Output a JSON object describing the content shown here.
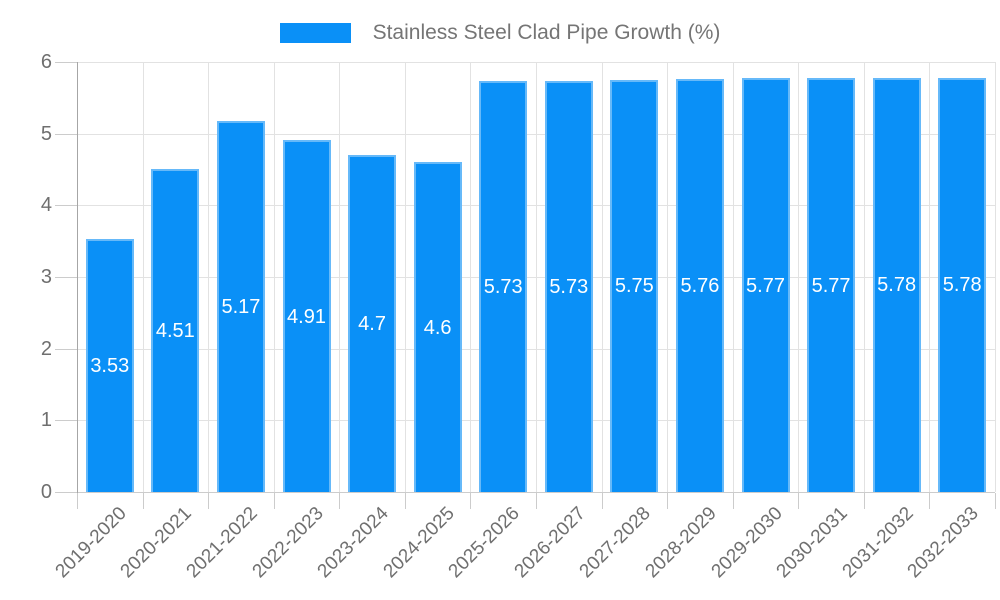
{
  "chart_data": {
    "type": "bar",
    "title": "Stainless Steel Clad Pipe Growth (%)",
    "legend": {
      "label": "Stainless Steel Clad Pipe Growth (%)",
      "position": "top-center"
    },
    "categories": [
      "2019-2020",
      "2020-2021",
      "2021-2022",
      "2022-2023",
      "2023-2024",
      "2024-2025",
      "2025-2026",
      "2026-2027",
      "2027-2028",
      "2028-2029",
      "2029-2030",
      "2030-2031",
      "2031-2032",
      "2032-2033"
    ],
    "series": [
      {
        "name": "Stainless Steel Clad Pipe Growth (%)",
        "values": [
          3.53,
          4.51,
          5.17,
          4.91,
          4.7,
          4.6,
          5.73,
          5.73,
          5.75,
          5.76,
          5.77,
          5.77,
          5.78,
          5.78
        ]
      }
    ],
    "bar_labels": [
      "3.53",
      "4.51",
      "5.17",
      "4.91",
      "4.7",
      "4.6",
      "5.73",
      "5.73",
      "5.75",
      "5.76",
      "5.77",
      "5.77",
      "5.78",
      "5.78"
    ],
    "xlabel": "",
    "ylabel": "",
    "ylim": [
      0,
      6
    ],
    "yticks": [
      "0",
      "1",
      "2",
      "3",
      "4",
      "5",
      "6"
    ],
    "grid": "both",
    "colors": {
      "bar_fill": "#0a90f7",
      "bar_border": "#66b9f9",
      "gridline": "#e2e2e2",
      "y_axis_line": "#a6a6a6",
      "tick": "#cccccc",
      "axis_text": "#6f6f6f",
      "bar_label_text": "#ffffff",
      "legend_text": "#757575",
      "background": "#ffffff"
    }
  }
}
